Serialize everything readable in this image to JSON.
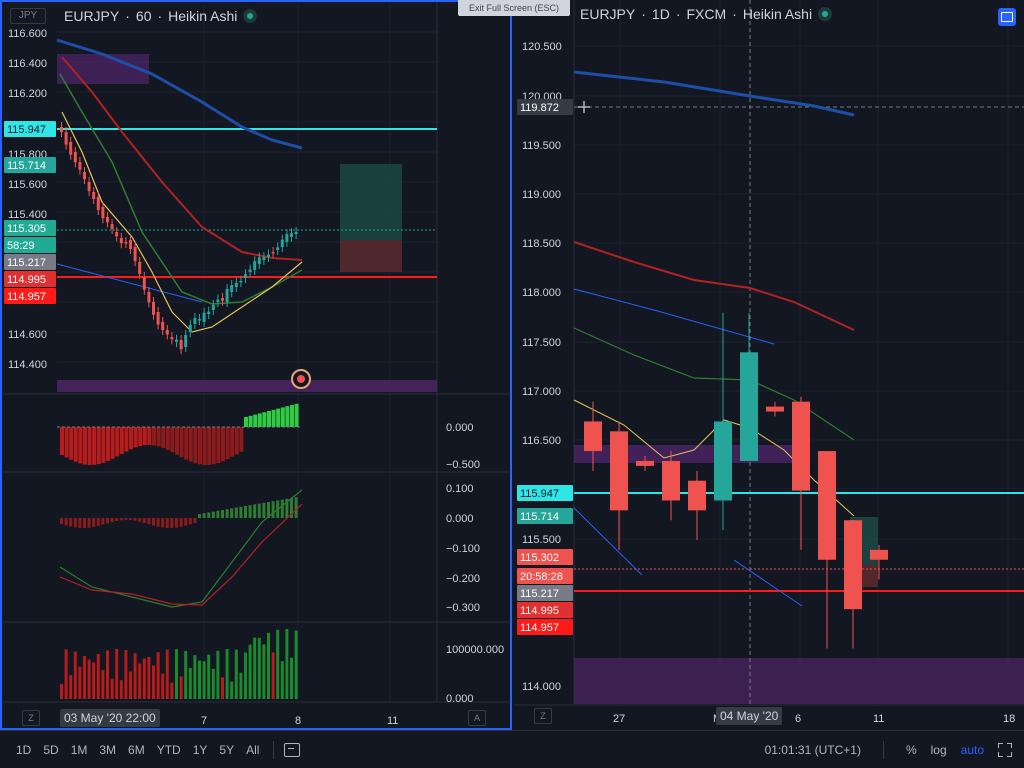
{
  "left_chart": {
    "currency_badge": "JPY",
    "symbol": "EURJPY",
    "interval": "60",
    "chart_type": "Heikin Ashi",
    "price_labels": [
      "116.600",
      "116.400",
      "116.200",
      "115.800",
      "115.600",
      "115.400",
      "114.600",
      "114.400"
    ],
    "tags": [
      {
        "text": "115.947",
        "color": "#2ee6e6",
        "fg": "#131722"
      },
      {
        "text": "115.714",
        "color": "#26a69a",
        "fg": "#ffffff"
      },
      {
        "text": "115.305",
        "color": "#22ab94",
        "fg": "#ffffff"
      },
      {
        "text": "58:29",
        "color": "#22ab94",
        "fg": "#ffffff"
      },
      {
        "text": "115.217",
        "color": "#787b86",
        "fg": "#ffffff"
      },
      {
        "text": "114.995",
        "color": "#e0302f",
        "fg": "#ffffff"
      },
      {
        "text": "114.957",
        "color": "#ff1a1a",
        "fg": "#ffffff"
      }
    ],
    "osc1_labels": [
      "0.000",
      "−0.500"
    ],
    "osc2_labels": [
      "0.100",
      "0.000",
      "−0.100",
      "−0.200",
      "−0.300"
    ],
    "volume_labels": [
      "100000.000",
      "0.000"
    ],
    "time_labels": [
      "7",
      "8",
      "11"
    ],
    "date_badge": "03 May '20   22:00",
    "zoom_button": "Z",
    "auto_button": "A"
  },
  "right_chart": {
    "symbol": "EURJPY",
    "interval": "1D",
    "source": "FXCM",
    "chart_type": "Heikin Ashi",
    "tooltip": "Exit Full Screen (ESC)",
    "price_labels": [
      "120.500",
      "120.000",
      "119.500",
      "119.000",
      "118.500",
      "118.000",
      "117.500",
      "117.000",
      "116.500",
      "116.000",
      "115.500",
      "114.000"
    ],
    "tags": [
      {
        "text": "119.872",
        "color": "#363a45",
        "fg": "#ffffff"
      },
      {
        "text": "115.947",
        "color": "#2ee6e6",
        "fg": "#131722"
      },
      {
        "text": "115.714",
        "color": "#26a69a",
        "fg": "#ffffff"
      },
      {
        "text": "115.302",
        "color": "#ef5350",
        "fg": "#ffffff"
      },
      {
        "text": "20:58:28",
        "color": "#ef5350",
        "fg": "#ffffff"
      },
      {
        "text": "115.217",
        "color": "#787b86",
        "fg": "#ffffff"
      },
      {
        "text": "114.995",
        "color": "#e0302f",
        "fg": "#ffffff"
      },
      {
        "text": "114.957",
        "color": "#ff1a1a",
        "fg": "#ffffff"
      }
    ],
    "time_labels": [
      "27",
      "M",
      "6",
      "11",
      "18"
    ],
    "date_badge": "04 May '20",
    "zoom_button": "Z"
  },
  "bottom_bar": {
    "ranges": [
      "1D",
      "5D",
      "1M",
      "3M",
      "6M",
      "YTD",
      "1Y",
      "5Y",
      "All"
    ],
    "clock": "01:01:31 (UTC+1)",
    "percent": "%",
    "log": "log",
    "auto": "auto"
  },
  "colors": {
    "background": "#131722",
    "grid": "#1e222d",
    "up": "#26a69a",
    "down": "#ef5350",
    "ma_blue": "#1e4fa8",
    "ma_red": "#b22222",
    "ma_green": "#2e7d32",
    "ma_yellow": "#e6c35c",
    "cyan_line": "#2ee6e6",
    "red_line": "#ff1a1a",
    "purple_zone": "#4a2461"
  },
  "icons": [
    "currency-badge-icon",
    "fullscreen-icon",
    "calendar-range-icon",
    "expand-icon",
    "crosshair-plus-icon",
    "alert-target-icon"
  ]
}
